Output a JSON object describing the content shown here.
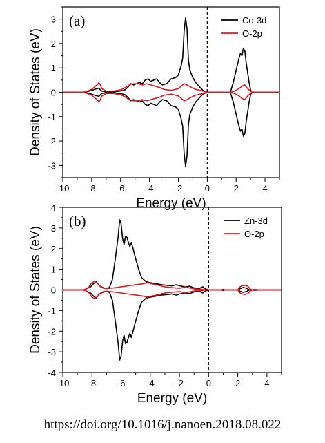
{
  "source_text": "https://doi.org/10.1016/j.nanoen.2018.08.022",
  "colors": {
    "d_states": "#000000",
    "o2p": "#e8141b",
    "frame": "#000000"
  },
  "chart_data": [
    {
      "type": "line",
      "panel_label": "(a)",
      "xlabel": "Energy (eV)",
      "ylabel": "Density of States (eV)",
      "xlim": [
        -10,
        5
      ],
      "ylim": [
        -3.5,
        3.5
      ],
      "xticks": [
        -10,
        -8,
        -6,
        -4,
        -2,
        0,
        2,
        4
      ],
      "yticks": [
        -3,
        -2,
        -1,
        0,
        1,
        2,
        3
      ],
      "fermi_level": 0,
      "legend_position": "top-right",
      "series": [
        {
          "name": "Co-3d",
          "color": "#000000",
          "points": [
            [
              -10,
              0
            ],
            [
              -8.6,
              0
            ],
            [
              -8.3,
              0.03
            ],
            [
              -8,
              0.08
            ],
            [
              -7.8,
              0.12
            ],
            [
              -7.6,
              0.15
            ],
            [
              -7.5,
              0.17
            ],
            [
              -7.4,
              0.1
            ],
            [
              -7.3,
              0.05
            ],
            [
              -7,
              0.02
            ],
            [
              -6.5,
              0.02
            ],
            [
              -6,
              0.05
            ],
            [
              -5.7,
              0.1
            ],
            [
              -5.5,
              0.2
            ],
            [
              -5.3,
              0.35
            ],
            [
              -5.1,
              0.3
            ],
            [
              -4.9,
              0.35
            ],
            [
              -4.7,
              0.4
            ],
            [
              -4.5,
              0.35
            ],
            [
              -4.3,
              0.5
            ],
            [
              -4.1,
              0.55
            ],
            [
              -3.9,
              0.45
            ],
            [
              -3.7,
              0.5
            ],
            [
              -3.5,
              0.55
            ],
            [
              -3.3,
              0.4
            ],
            [
              -3.1,
              0.3
            ],
            [
              -2.8,
              0.35
            ],
            [
              -2.5,
              0.55
            ],
            [
              -2.2,
              0.6
            ],
            [
              -2,
              0.7
            ],
            [
              -1.8,
              1.1
            ],
            [
              -1.7,
              1.4
            ],
            [
              -1.6,
              2.5
            ],
            [
              -1.5,
              3.05
            ],
            [
              -1.4,
              2.6
            ],
            [
              -1.3,
              1.3
            ],
            [
              -1.2,
              0.9
            ],
            [
              -1,
              0.6
            ],
            [
              -0.8,
              0.4
            ],
            [
              -0.5,
              0.2
            ],
            [
              -0.3,
              0.08
            ],
            [
              -0.1,
              0.02
            ],
            [
              0,
              0
            ],
            [
              1.6,
              0
            ],
            [
              1.8,
              0.4
            ],
            [
              2,
              0.9
            ],
            [
              2.2,
              1.4
            ],
            [
              2.3,
              1.6
            ],
            [
              2.4,
              1.5
            ],
            [
              2.5,
              1.8
            ],
            [
              2.6,
              1.7
            ],
            [
              2.7,
              1.2
            ],
            [
              2.8,
              0.8
            ],
            [
              2.9,
              0.4
            ],
            [
              3,
              0.1
            ],
            [
              3.1,
              0
            ],
            [
              5,
              0
            ]
          ]
        },
        {
          "name": "O-2p",
          "color": "#e8141b",
          "points": [
            [
              -10,
              0
            ],
            [
              -8.6,
              0
            ],
            [
              -8.3,
              0.05
            ],
            [
              -8,
              0.12
            ],
            [
              -7.8,
              0.22
            ],
            [
              -7.6,
              0.32
            ],
            [
              -7.5,
              0.4
            ],
            [
              -7.4,
              0.3
            ],
            [
              -7.3,
              0.15
            ],
            [
              -7,
              0.05
            ],
            [
              -6.5,
              0.05
            ],
            [
              -6,
              0.1
            ],
            [
              -5.7,
              0.18
            ],
            [
              -5.4,
              0.3
            ],
            [
              -5.1,
              0.35
            ],
            [
              -4.8,
              0.35
            ],
            [
              -4.5,
              0.3
            ],
            [
              -4.2,
              0.35
            ],
            [
              -3.9,
              0.3
            ],
            [
              -3.6,
              0.25
            ],
            [
              -3.3,
              0.2
            ],
            [
              -3,
              0.12
            ],
            [
              -2.5,
              0.08
            ],
            [
              -2,
              0.15
            ],
            [
              -1.6,
              0.35
            ],
            [
              -1.4,
              0.3
            ],
            [
              -1.1,
              0.2
            ],
            [
              -0.8,
              0.12
            ],
            [
              -0.5,
              0.08
            ],
            [
              -0.3,
              0.05
            ],
            [
              0,
              0
            ],
            [
              1.6,
              0
            ],
            [
              1.9,
              0.05
            ],
            [
              2.2,
              0.15
            ],
            [
              2.4,
              0.25
            ],
            [
              2.6,
              0.3
            ],
            [
              2.8,
              0.15
            ],
            [
              3,
              0.05
            ],
            [
              3.1,
              0
            ],
            [
              5,
              0
            ]
          ]
        }
      ]
    },
    {
      "type": "line",
      "panel_label": "(b)",
      "xlabel": "Energy (eV)",
      "ylabel": "Density of States (eV)",
      "xlim": [
        -10,
        5
      ],
      "ylim": [
        -4,
        4
      ],
      "xticks": [
        -10,
        -8,
        -6,
        -4,
        -2,
        0,
        2,
        4
      ],
      "yticks": [
        -4,
        -3,
        -2,
        -1,
        0,
        1,
        2,
        3,
        4
      ],
      "fermi_level": 0,
      "legend_position": "top-right",
      "series": [
        {
          "name": "Zn-3d",
          "color": "#000000",
          "points": [
            [
              -10,
              0
            ],
            [
              -8.6,
              0
            ],
            [
              -8.4,
              0.05
            ],
            [
              -8.1,
              0.15
            ],
            [
              -7.9,
              0.3
            ],
            [
              -7.7,
              0.4
            ],
            [
              -7.5,
              0.2
            ],
            [
              -7.2,
              0.1
            ],
            [
              -7,
              0.08
            ],
            [
              -6.8,
              0.12
            ],
            [
              -6.6,
              0.5
            ],
            [
              -6.4,
              1.5
            ],
            [
              -6.2,
              2.6
            ],
            [
              -6.1,
              3.4
            ],
            [
              -6,
              3.2
            ],
            [
              -5.9,
              2.5
            ],
            [
              -5.8,
              2.2
            ],
            [
              -5.7,
              2.6
            ],
            [
              -5.6,
              2.55
            ],
            [
              -5.5,
              2.3
            ],
            [
              -5.4,
              2.1
            ],
            [
              -5.3,
              2.3
            ],
            [
              -5.2,
              2.05
            ],
            [
              -5,
              1.5
            ],
            [
              -4.8,
              1.0
            ],
            [
              -4.6,
              0.6
            ],
            [
              -4.3,
              0.4
            ],
            [
              -4,
              0.35
            ],
            [
              -3.6,
              0.3
            ],
            [
              -3.2,
              0.25
            ],
            [
              -2.8,
              0.22
            ],
            [
              -2.5,
              0.2
            ],
            [
              -2.2,
              0.25
            ],
            [
              -2,
              0.2
            ],
            [
              -1.6,
              0.15
            ],
            [
              -1.3,
              0.18
            ],
            [
              -1,
              0.1
            ],
            [
              -0.7,
              0.05
            ],
            [
              -0.4,
              0.15
            ],
            [
              -0.2,
              0.05
            ],
            [
              0,
              0
            ],
            [
              0.9,
              0
            ],
            [
              1,
              0.03
            ],
            [
              1.1,
              0
            ],
            [
              2,
              0
            ],
            [
              2.2,
              0.08
            ],
            [
              2.4,
              0.12
            ],
            [
              2.6,
              0.08
            ],
            [
              2.8,
              0
            ],
            [
              3.2,
              0.02
            ],
            [
              3.5,
              0
            ],
            [
              5,
              0
            ]
          ]
        },
        {
          "name": "O-2p",
          "color": "#e8141b",
          "points": [
            [
              -10,
              0
            ],
            [
              -8.6,
              0
            ],
            [
              -8.4,
              0.05
            ],
            [
              -8.2,
              0.15
            ],
            [
              -8,
              0.35
            ],
            [
              -7.8,
              0.42
            ],
            [
              -7.6,
              0.3
            ],
            [
              -7.4,
              0.15
            ],
            [
              -7.2,
              0.08
            ],
            [
              -7,
              0.06
            ],
            [
              -6.5,
              0.1
            ],
            [
              -6,
              0.15
            ],
            [
              -5.5,
              0.2
            ],
            [
              -5,
              0.25
            ],
            [
              -4.5,
              0.3
            ],
            [
              -4.2,
              0.35
            ],
            [
              -3.9,
              0.3
            ],
            [
              -3.6,
              0.25
            ],
            [
              -3.3,
              0.2
            ],
            [
              -3,
              0.15
            ],
            [
              -2.6,
              0.12
            ],
            [
              -2.3,
              0.1
            ],
            [
              -2,
              0.08
            ],
            [
              -1.6,
              0.15
            ],
            [
              -1.3,
              0.1
            ],
            [
              -1,
              0.05
            ],
            [
              -0.5,
              0.03
            ],
            [
              0,
              0
            ],
            [
              2,
              0
            ],
            [
              2.15,
              0.15
            ],
            [
              2.3,
              0.2
            ],
            [
              2.5,
              0.22
            ],
            [
              2.7,
              0.18
            ],
            [
              2.85,
              0.05
            ],
            [
              3,
              0
            ],
            [
              5,
              0
            ]
          ]
        }
      ]
    }
  ]
}
